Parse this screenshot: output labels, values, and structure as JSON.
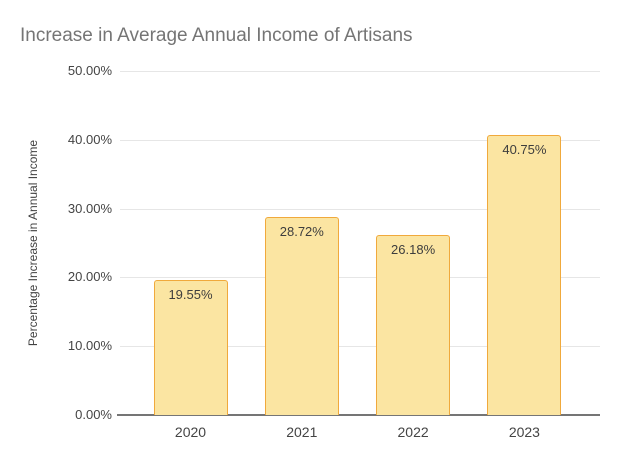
{
  "chart_data": {
    "type": "bar",
    "title": "Increase in Average Annual Income of Artisans",
    "ylabel": "Percentage Increase in Annual Income",
    "xlabel": "",
    "categories": [
      "2020",
      "2021",
      "2022",
      "2023"
    ],
    "values": [
      19.55,
      28.72,
      26.18,
      40.75
    ],
    "value_labels": [
      "19.55%",
      "28.72%",
      "26.18%",
      "40.75%"
    ],
    "yticks": [
      0,
      10,
      20,
      30,
      40,
      50
    ],
    "ytick_labels": [
      "0.00%",
      "10.00%",
      "20.00%",
      "30.00%",
      "40.00%",
      "50.00%"
    ],
    "ylim": [
      0,
      50
    ],
    "grid": true,
    "legend_position": "none",
    "colors": {
      "bar_fill": "#FBE5A2",
      "bar_border": "#F0A93C",
      "title_text": "#757575",
      "axis_text": "#444444",
      "y_title_text": "#424242",
      "value_label_text": "#3D3D3D",
      "gridline": "#E6E6E6",
      "baseline": "#757575",
      "background": "#FFFFFF"
    }
  }
}
